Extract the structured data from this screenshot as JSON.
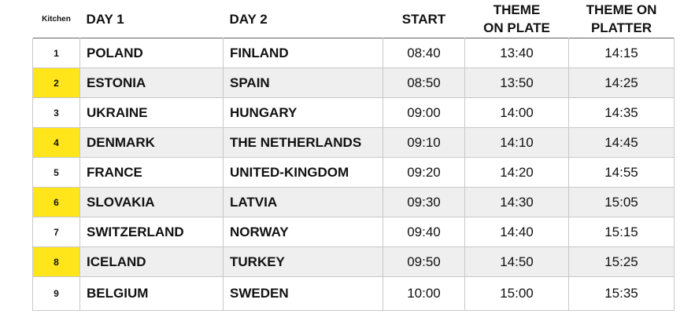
{
  "table": {
    "header": [
      "Kitchen",
      "DAY 1",
      "DAY 2",
      "START",
      [
        "THEME",
        "ON PLATE"
      ],
      [
        "THEME ON",
        "PLATTER"
      ]
    ],
    "rows": [
      [
        "1",
        "POLAND",
        "FINLAND",
        "08:40",
        "13:40",
        "14:15"
      ],
      [
        "2",
        "ESTONIA",
        "SPAIN",
        "08:50",
        "13:50",
        "14:25"
      ],
      [
        "3",
        "UKRAINE",
        "HUNGARY",
        "09:00",
        "14:00",
        "14:35"
      ],
      [
        "4",
        "DENMARK",
        "THE NETHERLANDS",
        "09:10",
        "14:10",
        "14:45"
      ],
      [
        "5",
        "FRANCE",
        "UNITED-KINGDOM",
        "09:20",
        "14:20",
        "14:55"
      ],
      [
        "6",
        "SLOVAKIA",
        "LATVIA",
        "09:30",
        "14:30",
        "15:05"
      ],
      [
        "7",
        "SWITZERLAND",
        "NORWAY",
        "09:40",
        "14:40",
        "15:15"
      ],
      [
        "8",
        "ICELAND",
        "TURKEY",
        "09:50",
        "14:50",
        "15:25"
      ],
      [
        "9",
        "BELGIUM",
        "SWEDEN",
        "10:00",
        "15:00",
        "15:35"
      ]
    ]
  }
}
